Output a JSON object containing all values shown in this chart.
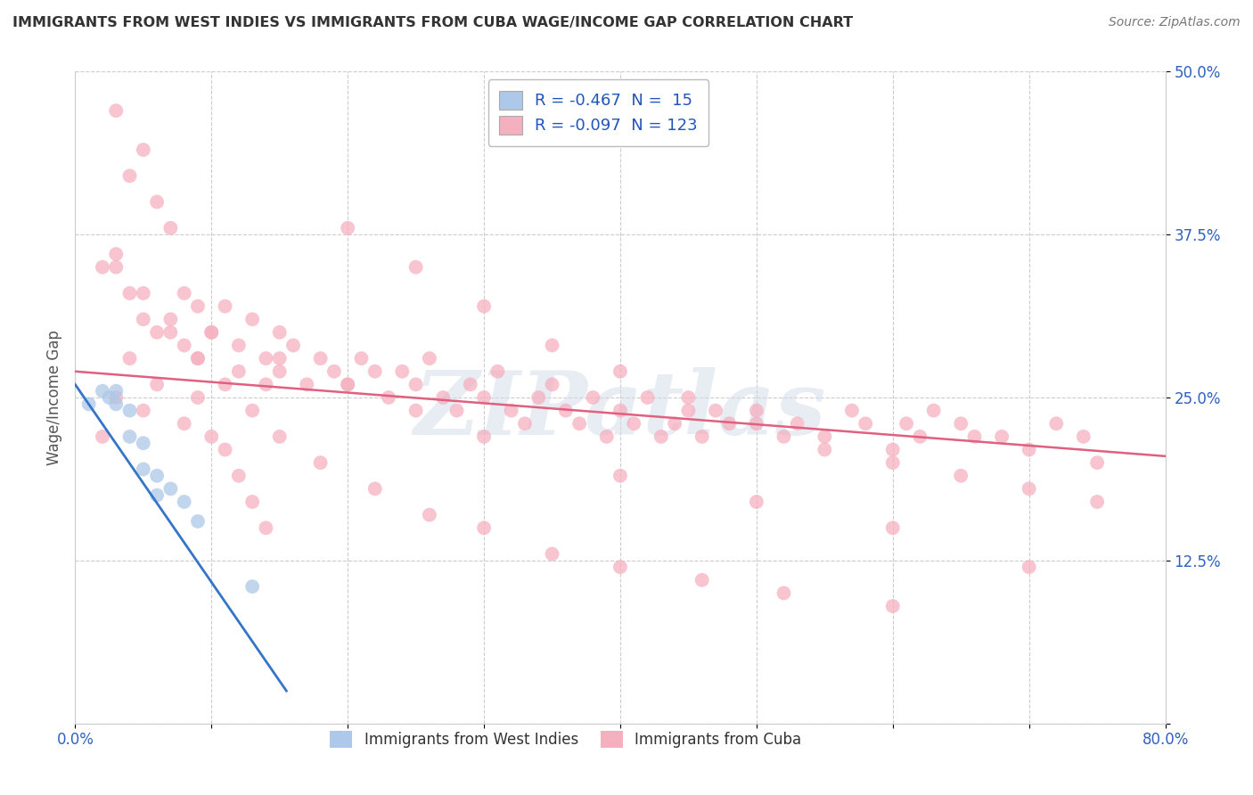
{
  "title": "IMMIGRANTS FROM WEST INDIES VS IMMIGRANTS FROM CUBA WAGE/INCOME GAP CORRELATION CHART",
  "source": "Source: ZipAtlas.com",
  "ylabel": "Wage/Income Gap",
  "xlim": [
    0.0,
    0.8
  ],
  "ylim": [
    0.0,
    0.5
  ],
  "ytick_positions": [
    0.0,
    0.125,
    0.25,
    0.375,
    0.5
  ],
  "ytick_labels": [
    "",
    "12.5%",
    "25.0%",
    "37.5%",
    "50.0%"
  ],
  "xtick_positions": [
    0.0,
    0.8
  ],
  "xtick_labels": [
    "0.0%",
    "80.0%"
  ],
  "west_indies_color": "#adc8e8",
  "cuba_color": "#f5b0c0",
  "trend_blue": "#3575c8",
  "trend_pink": "#e06080",
  "legend_text_color": "#2255bb",
  "R_west": -0.467,
  "N_west": 15,
  "R_cuba": -0.097,
  "N_cuba": 123,
  "watermark": "ZIPatlas",
  "background_color": "#ffffff",
  "grid_color": "#cccccc",
  "west_x": [
    0.01,
    0.02,
    0.025,
    0.03,
    0.03,
    0.04,
    0.04,
    0.05,
    0.05,
    0.06,
    0.06,
    0.07,
    0.08,
    0.09,
    0.13
  ],
  "west_y": [
    0.245,
    0.255,
    0.25,
    0.255,
    0.245,
    0.24,
    0.22,
    0.215,
    0.195,
    0.19,
    0.175,
    0.18,
    0.17,
    0.155,
    0.105
  ],
  "cuba_x": [
    0.03,
    0.05,
    0.04,
    0.06,
    0.07,
    0.02,
    0.03,
    0.04,
    0.05,
    0.06,
    0.07,
    0.08,
    0.08,
    0.09,
    0.09,
    0.1,
    0.11,
    0.12,
    0.12,
    0.13,
    0.14,
    0.14,
    0.15,
    0.15,
    0.16,
    0.17,
    0.18,
    0.19,
    0.2,
    0.21,
    0.22,
    0.23,
    0.24,
    0.25,
    0.26,
    0.27,
    0.28,
    0.29,
    0.3,
    0.31,
    0.32,
    0.33,
    0.34,
    0.35,
    0.36,
    0.37,
    0.38,
    0.39,
    0.4,
    0.41,
    0.42,
    0.43,
    0.44,
    0.45,
    0.46,
    0.47,
    0.48,
    0.5,
    0.52,
    0.53,
    0.55,
    0.57,
    0.58,
    0.6,
    0.61,
    0.62,
    0.63,
    0.65,
    0.66,
    0.68,
    0.7,
    0.72,
    0.74,
    0.75,
    0.02,
    0.03,
    0.04,
    0.05,
    0.06,
    0.08,
    0.09,
    0.1,
    0.11,
    0.12,
    0.13,
    0.14,
    0.03,
    0.05,
    0.07,
    0.09,
    0.11,
    0.13,
    0.15,
    0.18,
    0.22,
    0.26,
    0.3,
    0.35,
    0.4,
    0.46,
    0.52,
    0.6,
    0.2,
    0.25,
    0.3,
    0.35,
    0.4,
    0.45,
    0.5,
    0.55,
    0.6,
    0.65,
    0.7,
    0.75,
    0.1,
    0.15,
    0.2,
    0.25,
    0.3,
    0.4,
    0.5,
    0.6,
    0.7
  ],
  "cuba_y": [
    0.47,
    0.44,
    0.42,
    0.4,
    0.38,
    0.35,
    0.35,
    0.33,
    0.31,
    0.3,
    0.31,
    0.33,
    0.29,
    0.32,
    0.28,
    0.3,
    0.32,
    0.29,
    0.27,
    0.31,
    0.28,
    0.26,
    0.3,
    0.27,
    0.29,
    0.26,
    0.28,
    0.27,
    0.26,
    0.28,
    0.27,
    0.25,
    0.27,
    0.26,
    0.28,
    0.25,
    0.24,
    0.26,
    0.25,
    0.27,
    0.24,
    0.23,
    0.25,
    0.26,
    0.24,
    0.23,
    0.25,
    0.22,
    0.24,
    0.23,
    0.25,
    0.22,
    0.23,
    0.24,
    0.22,
    0.24,
    0.23,
    0.24,
    0.22,
    0.23,
    0.22,
    0.24,
    0.23,
    0.21,
    0.23,
    0.22,
    0.24,
    0.23,
    0.22,
    0.22,
    0.21,
    0.23,
    0.22,
    0.2,
    0.22,
    0.25,
    0.28,
    0.24,
    0.26,
    0.23,
    0.25,
    0.22,
    0.21,
    0.19,
    0.17,
    0.15,
    0.36,
    0.33,
    0.3,
    0.28,
    0.26,
    0.24,
    0.22,
    0.2,
    0.18,
    0.16,
    0.15,
    0.13,
    0.12,
    0.11,
    0.1,
    0.09,
    0.38,
    0.35,
    0.32,
    0.29,
    0.27,
    0.25,
    0.23,
    0.21,
    0.2,
    0.19,
    0.18,
    0.17,
    0.3,
    0.28,
    0.26,
    0.24,
    0.22,
    0.19,
    0.17,
    0.15,
    0.12
  ],
  "pink_trend_x0": 0.0,
  "pink_trend_y0": 0.27,
  "pink_trend_x1": 0.8,
  "pink_trend_y1": 0.205,
  "blue_trend_x0": 0.0,
  "blue_trend_y0": 0.26,
  "blue_trend_x1": 0.155,
  "blue_trend_y1": 0.025
}
